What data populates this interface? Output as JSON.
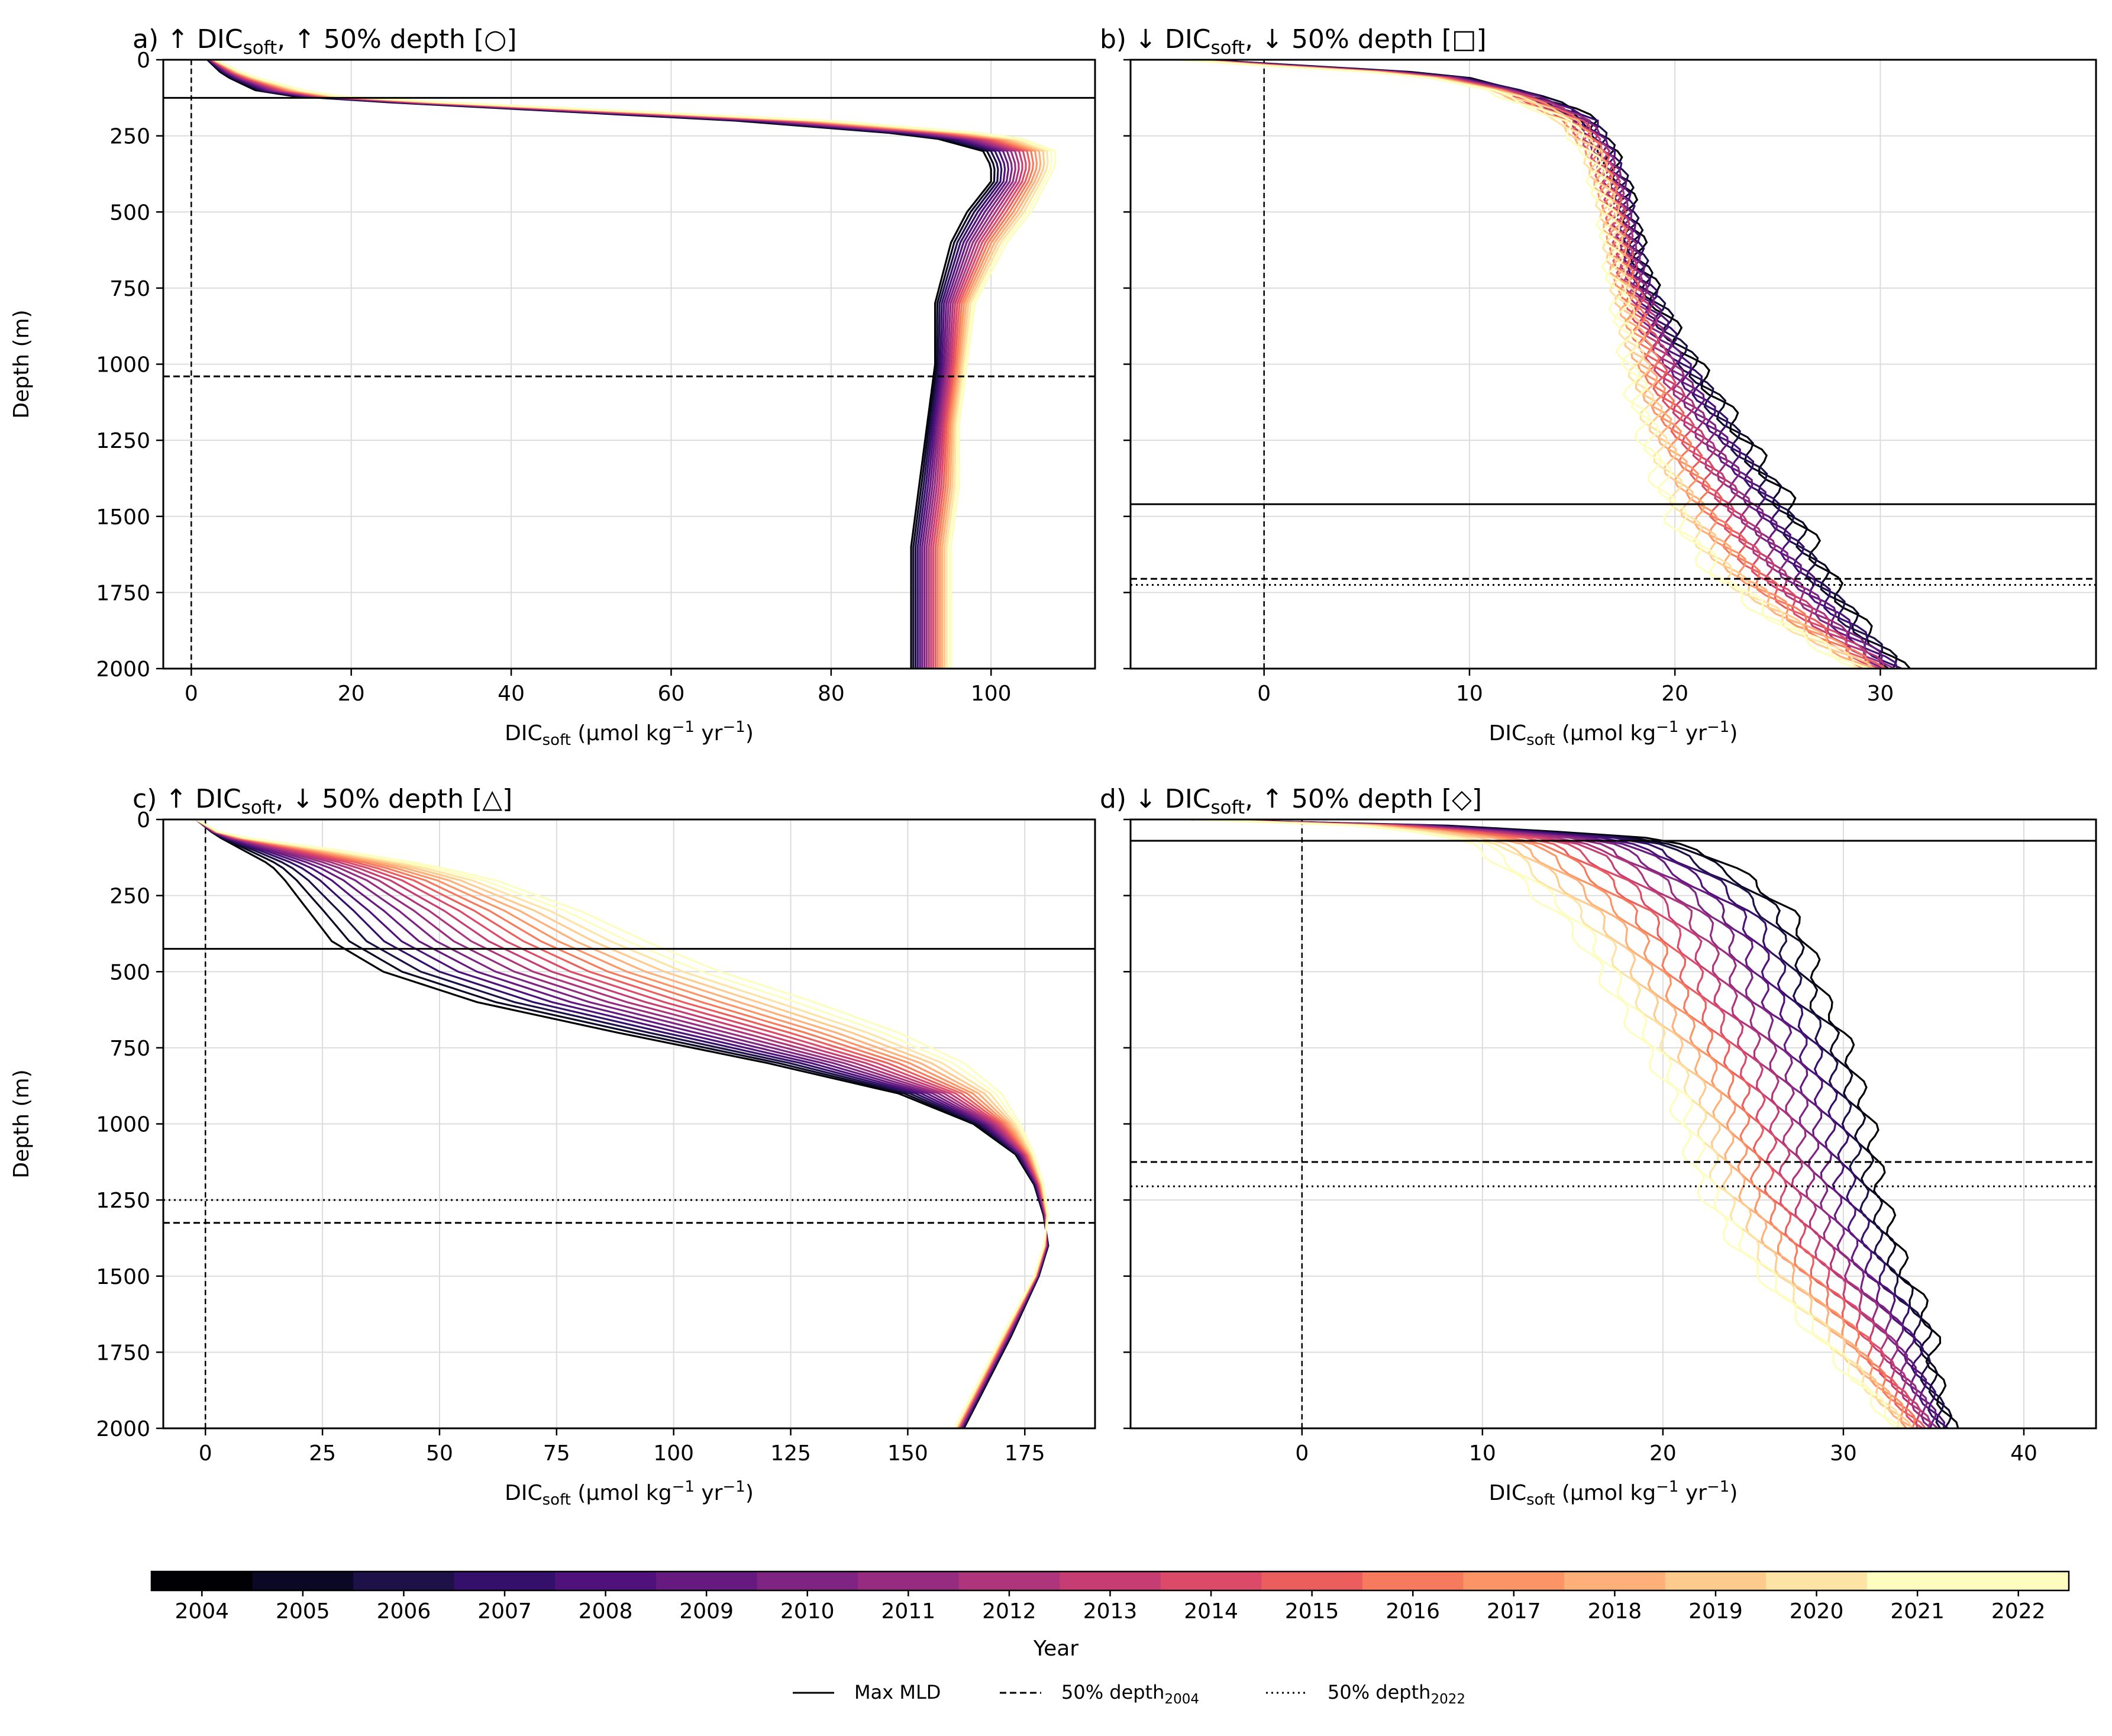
{
  "figure": {
    "xlabel_main": "DIC",
    "xlabel_sub": "soft",
    "xlabel_units": " (µmol kg",
    "xlabel_exp": "−1",
    "xlabel_units2": " yr",
    "xlabel_units3": ")",
    "ylabel": "Depth (m)"
  },
  "colorbar": {
    "label": "Year",
    "years": [
      "2004",
      "2005",
      "2006",
      "2007",
      "2008",
      "2009",
      "2010",
      "2011",
      "2012",
      "2013",
      "2014",
      "2015",
      "2016",
      "2017",
      "2018",
      "2019",
      "2020",
      "2021",
      "2022"
    ],
    "colors": [
      "#000004",
      "#0b0825",
      "#1d1147",
      "#35106b",
      "#4f127b",
      "#661a80",
      "#7e2482",
      "#962c80",
      "#ae347b",
      "#c63d73",
      "#dc4a6a",
      "#ec5d5e",
      "#f67a5c",
      "#fb9565",
      "#feb078",
      "#fecb8d",
      "#fde4a5",
      "#fcfdbf",
      "#fcfdbf"
    ]
  },
  "legend": {
    "items": [
      {
        "label": "Max MLD",
        "style": "solid"
      },
      {
        "label": "50% depth",
        "sub": "2004",
        "style": "dashed"
      },
      {
        "label": "50% depth",
        "sub": "2022",
        "style": "dotted"
      }
    ]
  },
  "chart_data": [
    {
      "type": "line",
      "title": "a) ↑ DIC",
      "title_sub": "soft",
      "title_tail": ", ↑ 50% depth [○]",
      "xlabel": "DIC soft (µmol kg−1 yr−1)",
      "ylabel": "Depth (m)",
      "xlim": [
        -3.5,
        113
      ],
      "ylim": [
        2000,
        0
      ],
      "xticks": [
        0,
        20,
        40,
        60,
        80,
        100
      ],
      "yticks": [
        0,
        250,
        500,
        750,
        1000,
        1250,
        1500,
        1750,
        2000
      ],
      "show_ylabel": true,
      "max_mld": 125,
      "depth50_2004": 1040,
      "depth50_2022": null,
      "series_family": {
        "depths": [
          0,
          50,
          100,
          125,
          150,
          200,
          250,
          300,
          350,
          400,
          500,
          600,
          700,
          800,
          1000,
          1200,
          1400,
          1600,
          1800,
          2000
        ],
        "first": [
          2,
          4,
          8,
          14,
          32,
          68,
          92,
          99,
          100,
          100,
          97,
          95,
          94,
          93,
          93,
          92,
          91,
          90,
          90,
          90
        ],
        "last": [
          3,
          7,
          14,
          20,
          40,
          80,
          103,
          108,
          108,
          107,
          105,
          102,
          100,
          98,
          97,
          96,
          96,
          95,
          95,
          95
        ],
        "wiggle": 0
      }
    },
    {
      "type": "line",
      "title": "b) ↓ DIC",
      "title_sub": "soft",
      "title_tail": ", ↓ 50% depth [□]",
      "xlabel": "DIC soft (µmol kg−1 yr−1)",
      "ylabel": "",
      "xlim": [
        -6.5,
        40.5
      ],
      "ylim": [
        2000,
        0
      ],
      "xticks": [
        0,
        10,
        20,
        30
      ],
      "yticks": [
        0,
        250,
        500,
        750,
        1000,
        1250,
        1500,
        1750,
        2000
      ],
      "show_ylabel": false,
      "max_mld": 1460,
      "depth50_2004": 1705,
      "depth50_2022": 1725,
      "series_family": {
        "depths": [
          0,
          20,
          40,
          60,
          100,
          150,
          200,
          300,
          400,
          500,
          700,
          900,
          1100,
          1300,
          1500,
          1700,
          1850,
          2000
        ],
        "first": [
          -3,
          2,
          7,
          10,
          12.5,
          14.5,
          16,
          16.8,
          17.5,
          17.8,
          18.5,
          20,
          22,
          24,
          26,
          27.5,
          29,
          31
        ],
        "last": [
          -4,
          0,
          5,
          8,
          11,
          13,
          14.5,
          15.8,
          16.2,
          16.6,
          17,
          17.5,
          18,
          18.8,
          19.8,
          22,
          25,
          29
        ],
        "wiggle": 0.5
      }
    },
    {
      "type": "line",
      "title": "c) ↑ DIC",
      "title_sub": "soft",
      "title_tail": ", ↓ 50% depth [△]",
      "xlabel": "DIC soft (µmol kg−1 yr−1)",
      "ylabel": "Depth (m)",
      "xlim": [
        -9,
        190
      ],
      "ylim": [
        2000,
        0
      ],
      "xticks": [
        0,
        25,
        50,
        75,
        100,
        125,
        150,
        175
      ],
      "yticks": [
        0,
        250,
        500,
        750,
        1000,
        1250,
        1500,
        1750,
        2000
      ],
      "show_ylabel": true,
      "max_mld": 425,
      "depth50_2004": 1325,
      "depth50_2022": 1250,
      "series_family": {
        "depths": [
          0,
          50,
          100,
          150,
          200,
          300,
          400,
          500,
          600,
          700,
          800,
          900,
          1000,
          1100,
          1200,
          1300,
          1400,
          1500,
          1700,
          2000
        ],
        "first": [
          -2,
          2,
          8,
          14,
          17,
          22,
          27,
          38,
          58,
          88,
          120,
          148,
          164,
          173,
          177,
          179,
          180,
          178,
          172,
          162
        ],
        "last": [
          -2,
          4,
          28,
          48,
          62,
          80,
          94,
          110,
          130,
          148,
          162,
          170,
          174,
          177,
          179,
          180,
          179,
          177,
          170,
          160
        ],
        "wiggle": 0
      }
    },
    {
      "type": "line",
      "title": "d) ↓ DIC",
      "title_sub": "soft",
      "title_tail": ", ↑ 50% depth [◇]",
      "xlabel": "DIC soft (µmol kg−1 yr−1)",
      "ylabel": "",
      "xlim": [
        -9.5,
        44
      ],
      "ylim": [
        2000,
        0
      ],
      "xticks": [
        0,
        10,
        20,
        30,
        40
      ],
      "yticks": [
        0,
        250,
        500,
        750,
        1000,
        1250,
        1500,
        1750,
        2000
      ],
      "show_ylabel": false,
      "max_mld": 70,
      "depth50_2004": 1125,
      "depth50_2022": 1205,
      "series_family": {
        "depths": [
          0,
          20,
          40,
          60,
          80,
          100,
          200,
          300,
          400,
          500,
          600,
          700,
          800,
          900,
          1000,
          1100,
          1200,
          1300,
          1400,
          1500,
          1600,
          1700,
          1800,
          1900,
          2000
        ],
        "first": [
          -6,
          8,
          14,
          19,
          21,
          22,
          25,
          27,
          28,
          28.5,
          29,
          30,
          30.5,
          31,
          31.5,
          31.8,
          32,
          32.5,
          33,
          33.5,
          34.5,
          35,
          35,
          35.5,
          36
        ],
        "last": [
          -6,
          3,
          6,
          8,
          9.5,
          10,
          12,
          14,
          15.5,
          16.5,
          17.5,
          18.5,
          19.5,
          20.5,
          21,
          21.5,
          22,
          23,
          24,
          25.5,
          27,
          28.5,
          30,
          31.5,
          33
        ],
        "wiggle": 0.4
      }
    }
  ]
}
